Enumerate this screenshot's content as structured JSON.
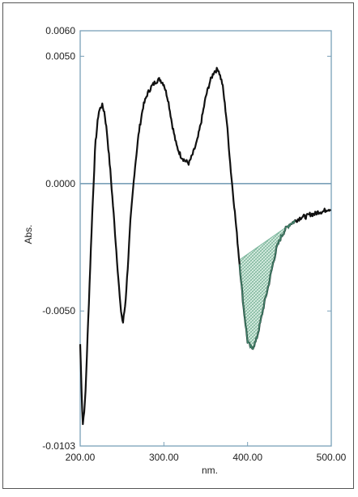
{
  "chart_data": {
    "type": "line",
    "title": "",
    "xlabel": "nm.",
    "ylabel": "Abs.",
    "xlim": [
      200.0,
      500.0
    ],
    "ylim": [
      -0.0103,
      0.006
    ],
    "x_ticks": [
      {
        "value": 200,
        "label": "200.00"
      },
      {
        "value": 300,
        "label": "300.00"
      },
      {
        "value": 400,
        "label": "400.00"
      },
      {
        "value": 500,
        "label": "500.00"
      }
    ],
    "y_ticks": [
      {
        "value": 0.006,
        "label": "0.0060"
      },
      {
        "value": 0.005,
        "label": "0.0050"
      },
      {
        "value": 0.0,
        "label": "0.0000"
      },
      {
        "value": -0.005,
        "label": "-0.0050"
      },
      {
        "value": -0.0103,
        "label": "-0.0103"
      }
    ],
    "baseline": 0.0,
    "series": [
      {
        "color": "#111111",
        "x": [
          200,
          203,
          206,
          210,
          214,
          218,
          222,
          226,
          229,
          232,
          236,
          240,
          244,
          248,
          251,
          254,
          257,
          260,
          265,
          270,
          275,
          280,
          285,
          290,
          295,
          300,
          305,
          310,
          315,
          320,
          325,
          330,
          335,
          340,
          345,
          350,
          355,
          360,
          365,
          370,
          375,
          380,
          385,
          390,
          395,
          400,
          405,
          410,
          415,
          420,
          425,
          430,
          435,
          440,
          445,
          450,
          455,
          460,
          465,
          470,
          475,
          480,
          485,
          490,
          495,
          500
        ],
        "y": [
          -0.0063,
          -0.0095,
          -0.0085,
          -0.005,
          -0.0015,
          0.0015,
          0.0028,
          0.0031,
          0.0028,
          0.002,
          0.0005,
          -0.0012,
          -0.003,
          -0.0048,
          -0.0055,
          -0.0047,
          -0.0032,
          -0.0015,
          0.0005,
          0.002,
          0.003,
          0.0035,
          0.0038,
          0.004,
          0.0041,
          0.0039,
          0.0033,
          0.0023,
          0.0015,
          0.0011,
          0.0009,
          0.0008,
          0.0012,
          0.0017,
          0.0025,
          0.0034,
          0.004,
          0.0044,
          0.0045,
          0.0039,
          0.0025,
          0.0005,
          -0.0012,
          -0.003,
          -0.0048,
          -0.0062,
          -0.0065,
          -0.0062,
          -0.0055,
          -0.0047,
          -0.004,
          -0.0032,
          -0.0025,
          -0.0021,
          -0.0018,
          -0.0016,
          -0.0015,
          -0.0014,
          -0.0013,
          -0.0013,
          -0.0012,
          -0.0012,
          -0.0011,
          -0.0011,
          -0.001,
          -0.001
        ]
      }
    ],
    "shaded_region": {
      "x_from": 390,
      "x_to": 457,
      "color": "#7fb8a0",
      "pattern": "hatched"
    },
    "axis_color": "#7aa0b8",
    "grid": false
  }
}
